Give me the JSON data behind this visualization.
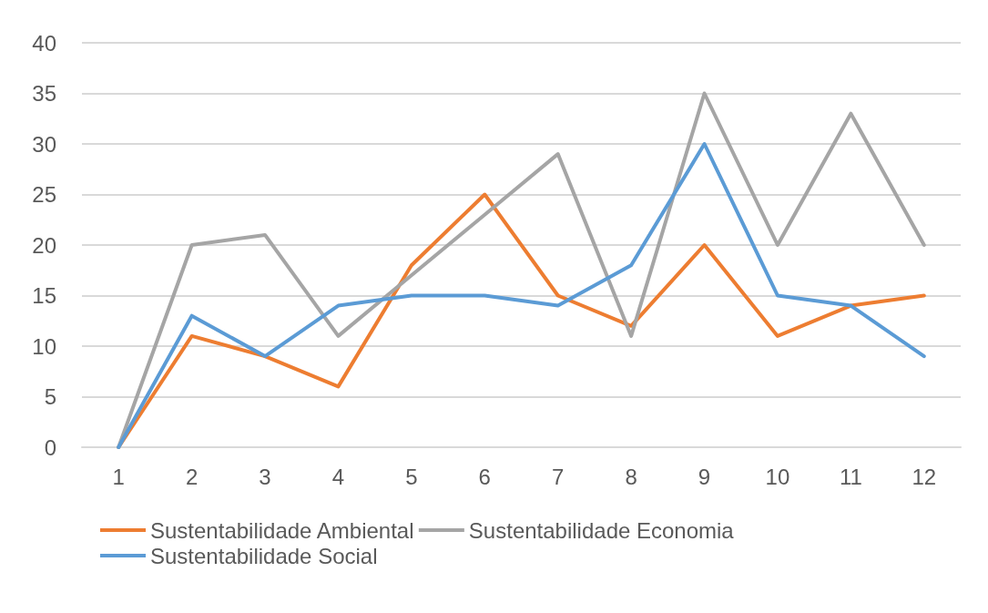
{
  "chart_data": {
    "type": "line",
    "categories": [
      "1",
      "2",
      "3",
      "4",
      "5",
      "6",
      "7",
      "8",
      "9",
      "10",
      "11",
      "12"
    ],
    "series": [
      {
        "name": "Sustentabilidade Ambiental",
        "color": "#ed7d31",
        "values": [
          0,
          11,
          9,
          6,
          18,
          25,
          15,
          12,
          20,
          11,
          14,
          15
        ]
      },
      {
        "name": "Sustentabilidade Economia",
        "color": "#a5a5a5",
        "values": [
          0,
          20,
          21,
          11,
          17,
          23,
          29,
          11,
          35,
          20,
          33,
          20
        ]
      },
      {
        "name": "Sustentabilidade Social",
        "color": "#5b9bd5",
        "values": [
          0,
          13,
          9,
          14,
          15,
          15,
          14,
          18,
          30,
          15,
          14,
          9
        ]
      }
    ],
    "ylim": [
      0,
      40
    ],
    "yticks": [
      0,
      5,
      10,
      15,
      20,
      25,
      30,
      35,
      40
    ],
    "grid": "y",
    "legend": "bottom",
    "marker": "none",
    "line_style": "solid"
  }
}
